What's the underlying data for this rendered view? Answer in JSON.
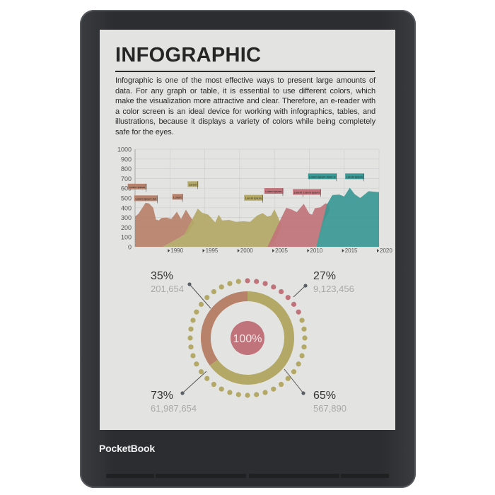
{
  "device": {
    "brand": "PocketBook",
    "body_color": "#2c2d30",
    "screen_color": "#e3e3e1"
  },
  "page": {
    "title": "INFOGRAPHIC",
    "paragraph": "Infographic is one of the most effective ways to present large amounts of data. For any graph or table, it is essential to use different colors, which make the visualization more attractive and clear. Therefore, an e-reader with a color screen is an ideal device for working with infographics, tables, and illustrations, because it displays a variety of colors while being completely safe for the eyes."
  },
  "chart_data": [
    {
      "type": "area",
      "xlim": [
        1985,
        2020
      ],
      "ylim": [
        0,
        1000
      ],
      "grid": true,
      "y_ticks": [
        "1000",
        "900",
        "800",
        "700",
        "600",
        "500",
        "400",
        "300",
        "200",
        "100",
        "0"
      ],
      "x_ticks": [
        "1990",
        "1995",
        "2000",
        "2005",
        "2010",
        "2015",
        "2020"
      ],
      "series": [
        {
          "color": "#b8826a",
          "points": [
            [
              1985,
              310
            ],
            [
              1985.5,
              340
            ],
            [
              1986.5,
              450
            ],
            [
              1987,
              445
            ],
            [
              1987.6,
              400
            ],
            [
              1988,
              280
            ],
            [
              1988.4,
              270
            ],
            [
              1988.8,
              295
            ],
            [
              1989.5,
              300
            ],
            [
              1990.2,
              285
            ],
            [
              1991,
              360
            ],
            [
              1991.6,
              285
            ],
            [
              1992.3,
              380
            ],
            [
              1993,
              300
            ],
            [
              1993.5,
              250
            ],
            [
              1992.5,
              140
            ],
            [
              1989,
              0
            ]
          ]
        },
        {
          "color": "#b3a866",
          "points": [
            [
              1989,
              0
            ],
            [
              1992,
              120
            ],
            [
              1994,
              390
            ],
            [
              1994.6,
              350
            ],
            [
              1995.5,
              330
            ],
            [
              1996.5,
              250
            ],
            [
              1997,
              330
            ],
            [
              1997.5,
              270
            ],
            [
              1998.5,
              275
            ],
            [
              1999.5,
              255
            ],
            [
              2000.5,
              262
            ],
            [
              2001.5,
              255
            ],
            [
              2002.5,
              320
            ],
            [
              2003.3,
              345
            ],
            [
              2004,
              310
            ],
            [
              2004.5,
              320
            ],
            [
              2005,
              385
            ],
            [
              2005.6,
              290
            ],
            [
              2006,
              220
            ],
            [
              2005.5,
              120
            ],
            [
              2004.5,
              0
            ]
          ]
        },
        {
          "color": "#c0737a",
          "points": [
            [
              2004,
              0
            ],
            [
              2006,
              300
            ],
            [
              2006.7,
              400
            ],
            [
              2007.5,
              380
            ],
            [
              2008.2,
              355
            ],
            [
              2009.2,
              440
            ],
            [
              2010,
              340
            ],
            [
              2010.4,
              330
            ],
            [
              2010.8,
              395
            ],
            [
              2011.6,
              405
            ],
            [
              2012.3,
              445
            ],
            [
              2012.7,
              440
            ],
            [
              2013,
              380
            ],
            [
              2012,
              250
            ],
            [
              2011,
              0
            ]
          ]
        },
        {
          "color": "#3a9895",
          "points": [
            [
              2011,
              0
            ],
            [
              2012.5,
              430
            ],
            [
              2013.3,
              530
            ],
            [
              2014.3,
              535
            ],
            [
              2015,
              515
            ],
            [
              2015.8,
              605
            ],
            [
              2016.5,
              540
            ],
            [
              2017.3,
              500
            ],
            [
              2018,
              540
            ],
            [
              2018.5,
              570
            ],
            [
              2020,
              560
            ],
            [
              2020,
              0
            ]
          ]
        }
      ],
      "annotations": [
        {
          "text": "Lorem ipsum",
          "x": 1986.6,
          "y": 610,
          "color": "#b8826a"
        },
        {
          "text": "Lorem ipsum dol",
          "x": 1988.2,
          "y": 490,
          "color": "#b8826a"
        },
        {
          "text": "Lorem",
          "x": 1991.8,
          "y": 505,
          "color": "#b8826a"
        },
        {
          "text": "Lorem",
          "x": 1994,
          "y": 635,
          "color": "#b3a866"
        },
        {
          "text": "Lorem ipsum",
          "x": 2003.3,
          "y": 495,
          "color": "#b3a866"
        },
        {
          "text": "Lorem ipsum",
          "x": 2006.2,
          "y": 565,
          "color": "#c0737a"
        },
        {
          "text": "Lorem",
          "x": 2009.1,
          "y": 555,
          "color": "#c0737a"
        },
        {
          "text": "Lorem ipsum",
          "x": 2011.6,
          "y": 555,
          "color": "#c0737a"
        },
        {
          "text": "Lorem ipsum dolor si",
          "x": 2013.9,
          "y": 715,
          "color": "#3a9895"
        },
        {
          "text": "Lorem ipsum",
          "x": 2017.8,
          "y": 715,
          "color": "#3a9895"
        }
      ]
    },
    {
      "type": "pie",
      "center_label": "100%",
      "segments": [
        {
          "color": "#b8826a",
          "fraction": 0.35
        },
        {
          "color": "#b3a866",
          "fraction": 0.65
        }
      ],
      "dot_ring": {
        "red_fraction": 0.2,
        "red": "#c0737a",
        "rest": "#b3a866"
      },
      "callouts": [
        {
          "pct": "35%",
          "value": "201,654"
        },
        {
          "pct": "27%",
          "value": "9,123,456"
        },
        {
          "pct": "73%",
          "value": "61,987,654"
        },
        {
          "pct": "65%",
          "value": "567,890"
        }
      ]
    }
  ]
}
